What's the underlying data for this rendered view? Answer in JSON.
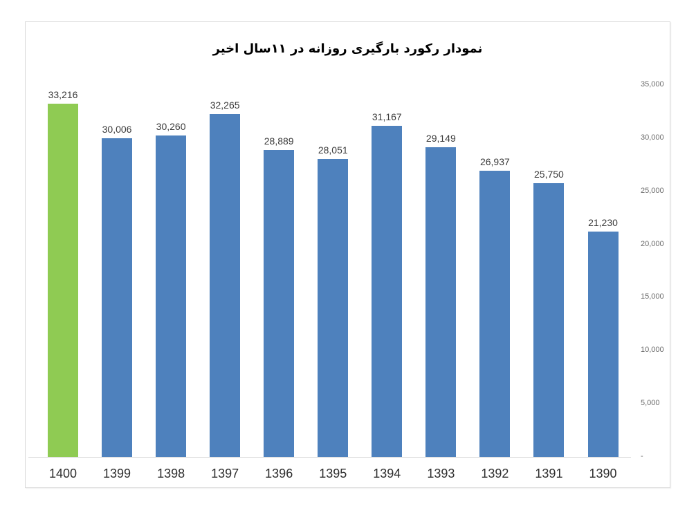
{
  "chart_data": {
    "type": "bar",
    "title": "نمودار رکورد بارگیری روزانه در ۱۱سال اخیر",
    "categories": [
      "1400",
      "1399",
      "1398",
      "1397",
      "1396",
      "1395",
      "1394",
      "1393",
      "1392",
      "1391",
      "1390"
    ],
    "values": [
      33216,
      30006,
      30260,
      32265,
      28889,
      28051,
      31167,
      29149,
      26937,
      25750,
      21230
    ],
    "data_labels": [
      "33,216",
      "30,006",
      "30,260",
      "32,265",
      "28,889",
      "28,051",
      "31,167",
      "29,149",
      "26,937",
      "25,750",
      "21,230"
    ],
    "y_ticks": [
      "35,000",
      "30,000",
      "25,000",
      "20,000",
      "15,000",
      "10,000",
      "5,000",
      "-"
    ],
    "ylim": [
      0,
      35000
    ],
    "y_tick_step": 5000,
    "grid": false,
    "legend_position": "none",
    "y_axis_side": "right",
    "highlight_index": 0,
    "colors": {
      "bar": "#4E81BD",
      "highlight_bar": "#8FCB53",
      "axis_line": "#D9D9D9",
      "y_tick_text": "#6B6B6B",
      "x_tick_text": "#2E2E2E",
      "value_label_text": "#3A3A3A",
      "title_text": "#000000"
    }
  }
}
